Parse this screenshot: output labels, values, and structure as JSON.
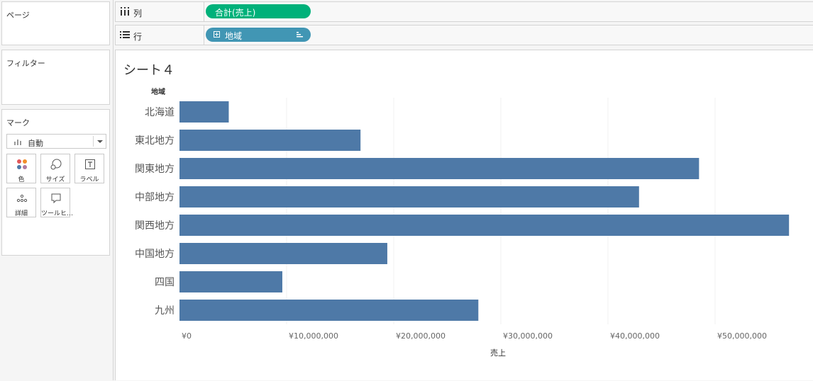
{
  "left_panel": {
    "pages_title": "ページ",
    "filters_title": "フィルター",
    "marks_title": "マーク",
    "marks_type": "自動",
    "buttons": [
      {
        "label": "色",
        "icon": "color-dots-icon"
      },
      {
        "label": "サイズ",
        "icon": "size-icon"
      },
      {
        "label": "ラベル",
        "icon": "label-icon"
      },
      {
        "label": "詳細",
        "icon": "detail-dots-icon"
      },
      {
        "label": "ツールヒ…",
        "icon": "tooltip-icon"
      }
    ]
  },
  "shelves": {
    "columns": {
      "label": "列",
      "pill": "合計(売上)",
      "pill_color": "#00b17a"
    },
    "rows": {
      "label": "行",
      "pill": "地域",
      "pill_color": "#4196b4"
    }
  },
  "sheet": {
    "title": "シート４"
  },
  "chart_data": {
    "type": "bar",
    "orientation": "horizontal",
    "row_header": "地域",
    "categories": [
      "北海道",
      "東北地方",
      "関東地方",
      "中部地方",
      "関西地方",
      "中国地方",
      "四国",
      "九州"
    ],
    "values": [
      4600000,
      16900000,
      48500000,
      42900000,
      56900000,
      19400000,
      9600000,
      27900000
    ],
    "xlabel": "売上",
    "ticks": [
      0,
      10000000,
      20000000,
      30000000,
      40000000,
      50000000
    ],
    "tick_labels": [
      "¥0",
      "¥10,000,000",
      "¥20,000,000",
      "¥30,000,000",
      "¥40,000,000",
      "¥50,000,000"
    ],
    "xlim": [
      0,
      59000000
    ],
    "color": "#4e79a7",
    "grid": true
  }
}
